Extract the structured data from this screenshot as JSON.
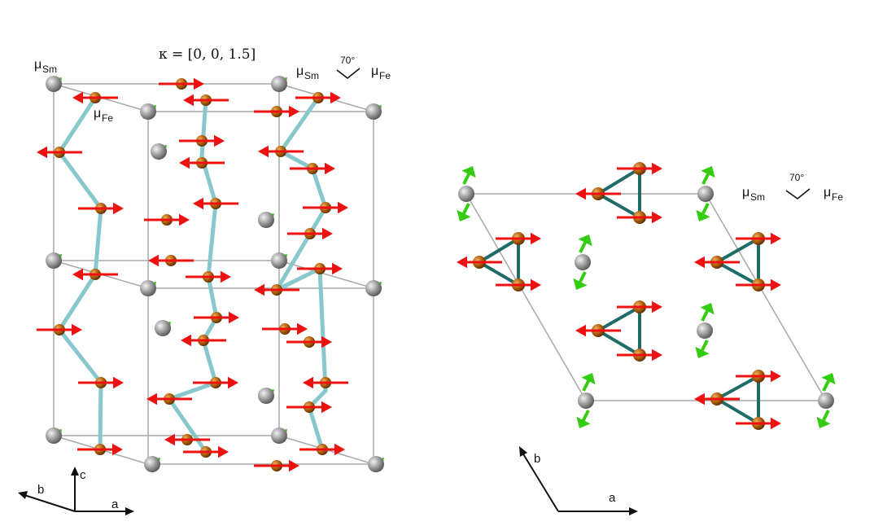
{
  "left_panel": {
    "wave_vector_label": "κ = [0, 0, 1.5]",
    "moment_sm_label": "μ",
    "moment_sm_sub": "Sm",
    "moment_fe_label": "μ",
    "moment_fe_sub": "Fe",
    "angle_label": "70°",
    "axis_a": "a",
    "axis_b": "b",
    "axis_c": "c"
  },
  "right_panel": {
    "moment_sm_label": "μ",
    "moment_sm_sub": "Sm",
    "moment_fe_label": "μ",
    "moment_fe_sub": "Fe",
    "angle_label": "70°",
    "axis_a": "a",
    "axis_b": "b"
  },
  "colors": {
    "sm_atom": "#8c8c8c",
    "fe_atom": "#b8600f",
    "fe_moment": "#ee1111",
    "sm_moment": "#33cc11",
    "fe_bond_left": "#88c8cc",
    "fe_bond_right": "#1f6b67",
    "cell_edge": "#aaaaaa"
  }
}
